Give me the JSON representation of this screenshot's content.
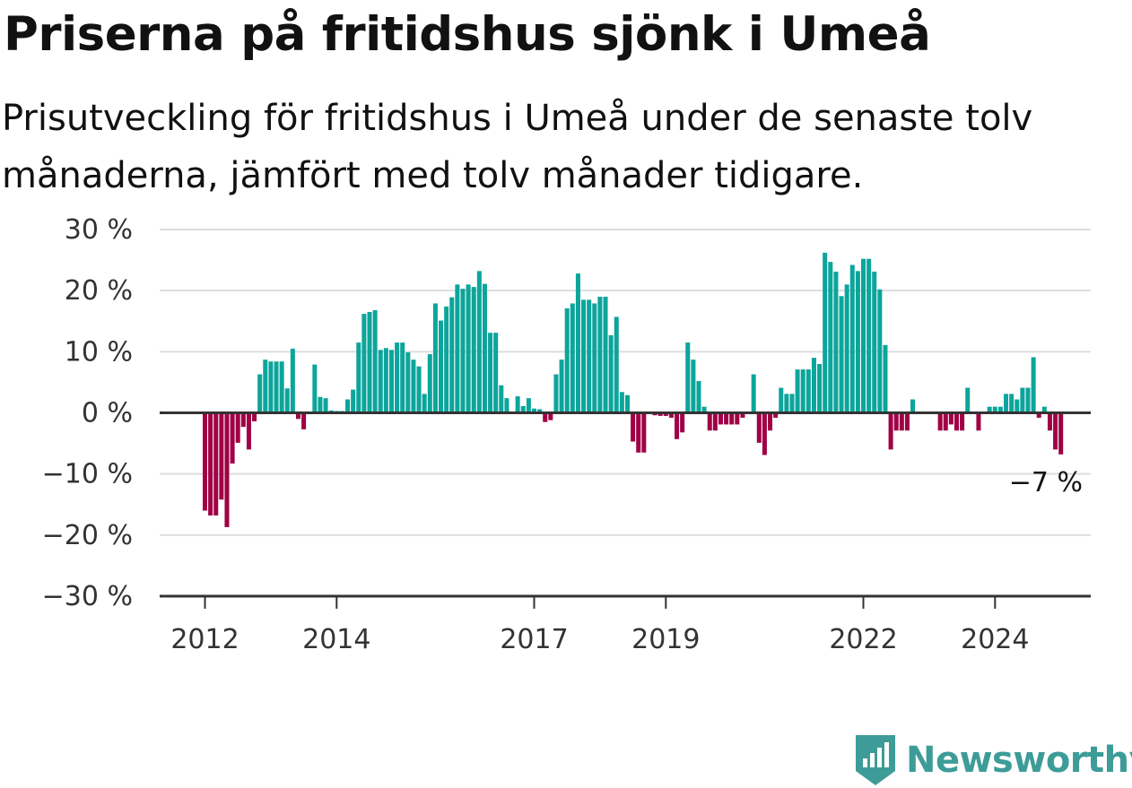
{
  "title": "Priserna på fritidshus sjönk i Umeå",
  "subtitle": "Prisutveckling för fritidshus i Umeå under de senaste tolv månaderna, jämfört med tolv månader tidigare.",
  "brand": {
    "name": "Newsworthy",
    "icon": "newsworthy-logo-icon",
    "color": "#3d9c98"
  },
  "chart_data": {
    "type": "bar",
    "x_start": "2012-01",
    "frequency": "monthly",
    "y_unit": "%",
    "ylim": [
      -30,
      30
    ],
    "yticks": [
      30,
      20,
      10,
      0,
      -10,
      -20,
      -30
    ],
    "ytick_labels": [
      "30 %",
      "20 %",
      "10 %",
      "0 %",
      "−10 %",
      "−20 %",
      "−30 %"
    ],
    "xtick_labels": [
      "2012",
      "2014",
      "2017",
      "2019",
      "2022",
      "2024"
    ],
    "grid": true,
    "colors": {
      "positive": "#0ca59b",
      "negative": "#a00045",
      "grid": "#dddddd",
      "axis": "#333333"
    },
    "end_label": "−7 %",
    "values": [
      -16,
      -16.8,
      -16.8,
      -14.2,
      -18.7,
      -8.3,
      -4.9,
      -2.3,
      -6,
      -1.4,
      6.3,
      8.7,
      8.4,
      8.4,
      8.4,
      4,
      10.5,
      -1,
      -2.7,
      0,
      7.9,
      2.6,
      2.4,
      0.4,
      0.3,
      0.3,
      2.2,
      3.8,
      11.5,
      16.2,
      16.5,
      16.8,
      10.3,
      10.6,
      10.3,
      11.5,
      11.5,
      9.9,
      8.7,
      7.6,
      3.1,
      9.6,
      17.9,
      15.1,
      17.4,
      18.9,
      21,
      20.3,
      21,
      20.6,
      23.2,
      21.1,
      13.1,
      13.1,
      4.5,
      2.4,
      0,
      2.7,
      1.1,
      2.4,
      0.7,
      0.6,
      -1.5,
      -1.2,
      6.3,
      8.7,
      17.1,
      17.9,
      22.8,
      18.5,
      18.5,
      17.9,
      19,
      19,
      12.7,
      15.7,
      3.4,
      2.9,
      -4.7,
      -6.5,
      -6.5,
      0,
      -0.4,
      -0.5,
      -0.5,
      -0.8,
      -4.3,
      -3.2,
      11.5,
      8.7,
      5.2,
      1,
      -2.9,
      -2.9,
      -1.9,
      -1.9,
      -1.9,
      -1.9,
      -0.8,
      0,
      6.3,
      -4.9,
      -6.9,
      -2.9,
      -0.8,
      4.1,
      3.1,
      3.1,
      7.1,
      7.1,
      7.1,
      9,
      8,
      26.2,
      24.7,
      23.1,
      19.1,
      21,
      24.2,
      23.2,
      25.2,
      25.2,
      23.1,
      20.2,
      11.1,
      -6,
      -2.9,
      -2.9,
      -2.9,
      2.2,
      0,
      0,
      0,
      0,
      -2.9,
      -2.9,
      -1.9,
      -2.9,
      -2.9,
      4.1,
      0,
      -2.9,
      0,
      1,
      1,
      1,
      3.1,
      3.1,
      2.2,
      4.1,
      4.1,
      9.1,
      -0.8,
      1,
      -2.9,
      -6,
      -6.8
    ]
  }
}
